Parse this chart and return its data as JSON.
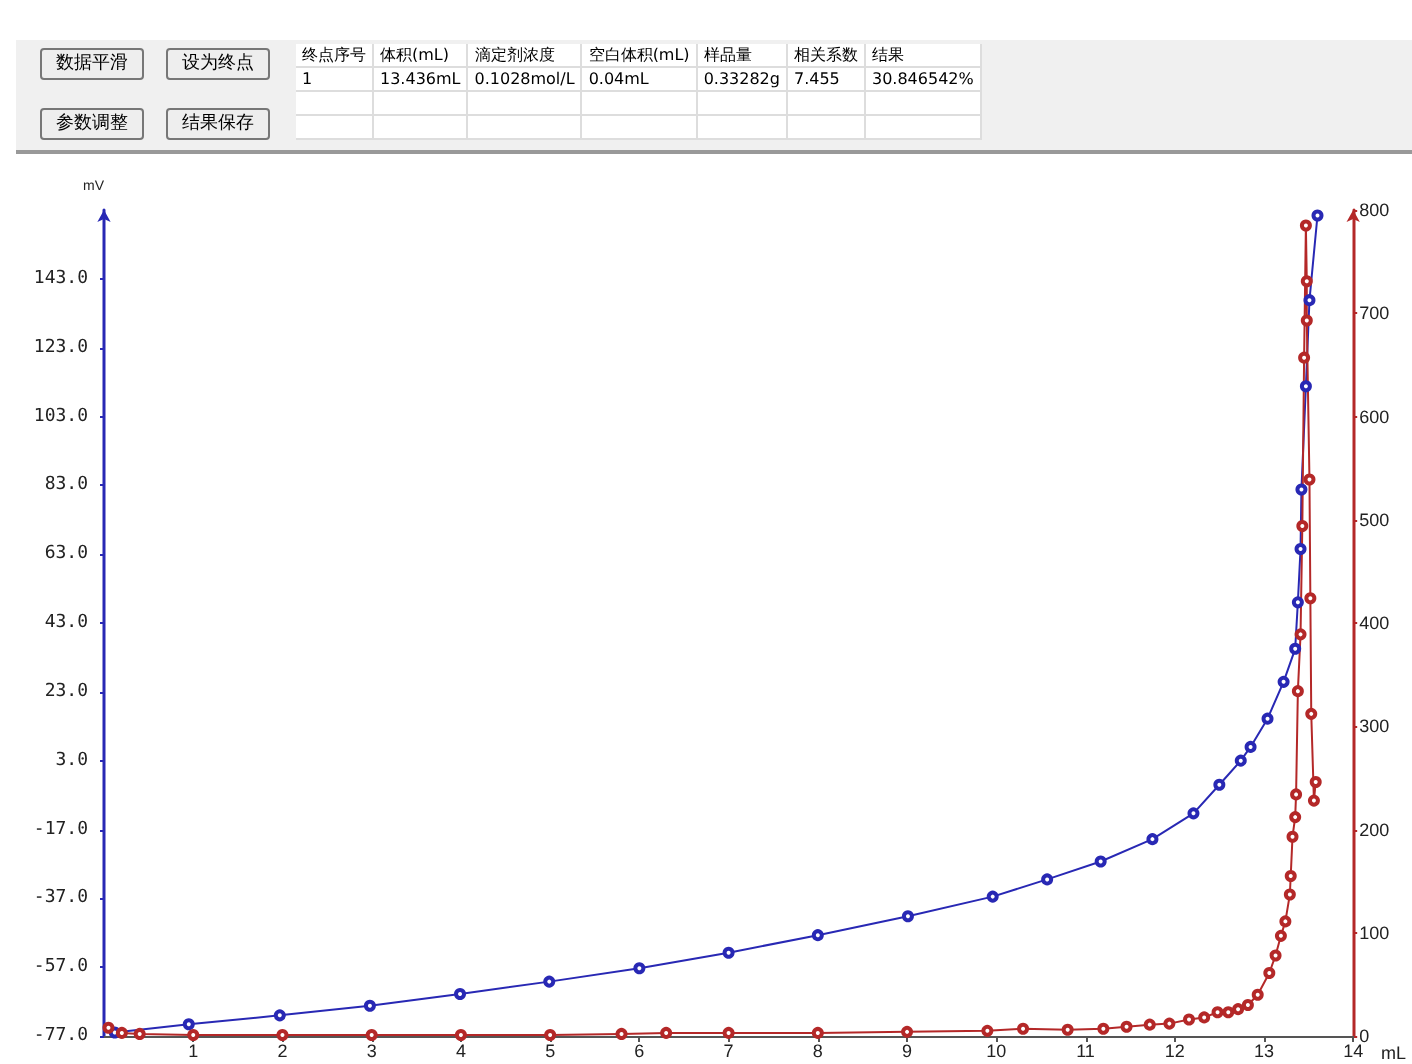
{
  "chart_data": {
    "type": "line",
    "xlabel": "mL",
    "ylabel": "mV",
    "xlim": [
      0,
      14
    ],
    "xticks": [
      1,
      2,
      3,
      4,
      5,
      6,
      7,
      8,
      9,
      10,
      11,
      12,
      13,
      14
    ],
    "ylim": [
      -77,
      163
    ],
    "yticks": [
      {
        "value": -77,
        "label": "-77.0"
      },
      {
        "value": -57,
        "label": "-57.0"
      },
      {
        "value": -37,
        "label": "-37.0"
      },
      {
        "value": -17,
        "label": "-17.0"
      },
      {
        "value": 3,
        "label": "3.0"
      },
      {
        "value": 23,
        "label": "23.0"
      },
      {
        "value": 43,
        "label": "43.0"
      },
      {
        "value": 63,
        "label": "63.0"
      },
      {
        "value": 83,
        "label": "83.0"
      },
      {
        "value": 103,
        "label": "103.0"
      },
      {
        "value": 123,
        "label": "123.0"
      },
      {
        "value": 143,
        "label": "143.0"
      }
    ],
    "y2lim": [
      0,
      800
    ],
    "y2ticks": [
      0,
      100,
      200,
      300,
      400,
      500,
      600,
      700,
      800
    ],
    "grid": false,
    "marker": "circle",
    "line_style": "solid",
    "annotations": [
      "数据平滑",
      "设为终点",
      "参数调整",
      "结果保存",
      "终点序号",
      "体积(mL)",
      "滴定剂浓度",
      "空白体积(mL)",
      "样品量",
      "相关系数",
      "结果",
      "1",
      "13.436mL",
      "0.1028mol/L",
      "0.04mL",
      "0.33282g",
      "7.455",
      "30.846542%"
    ],
    "series": [
      {
        "color": "#2828b4",
        "x": [
          0.12,
          0.95,
          1.97,
          2.98,
          3.99,
          4.99,
          6.0,
          7.0,
          8.0,
          9.01,
          9.96,
          10.57,
          11.17,
          11.75,
          12.21,
          12.5,
          12.74,
          12.85,
          13.04,
          13.22,
          13.35,
          13.38,
          13.41,
          13.42,
          13.47,
          13.51,
          13.6
        ],
        "values": [
          -76,
          -73.6,
          -71,
          -68.2,
          -64.8,
          -61.2,
          -57.3,
          -52.8,
          -47.7,
          -42.2,
          -36.5,
          -31.5,
          -26.3,
          -19.8,
          -12.3,
          -4,
          3,
          7,
          15.2,
          25.9,
          35.5,
          49,
          64.5,
          81.8,
          111.8,
          136.8,
          161.4
        ]
      },
      {
        "color": "#b42828",
        "axis": "y2",
        "x": [
          0.05,
          0.2,
          0.4,
          1,
          2,
          3,
          4,
          5,
          5.8,
          6.3,
          7,
          8,
          9,
          9.9,
          10.3,
          10.8,
          11.2,
          11.46,
          11.72,
          11.94,
          12.16,
          12.33,
          12.48,
          12.6,
          12.71,
          12.82,
          12.93,
          13.06,
          13.13,
          13.19,
          13.24,
          13.29,
          13.3,
          13.32,
          13.35,
          13.36,
          13.38,
          13.41,
          13.43,
          13.45,
          13.47,
          13.48,
          13.48,
          13.51,
          13.52,
          13.53,
          13.56,
          13.58
        ],
        "values": [
          8,
          3,
          2,
          1,
          1,
          1,
          1,
          1,
          2,
          3,
          3,
          3,
          4,
          5,
          7,
          6,
          7,
          9,
          11,
          12,
          16,
          18,
          23,
          23,
          26,
          30,
          40,
          61,
          78,
          97,
          111,
          137,
          155,
          193,
          212,
          234,
          334,
          389,
          494,
          657,
          785,
          731,
          693,
          539,
          424,
          312,
          228,
          246
        ]
      }
    ]
  }
}
